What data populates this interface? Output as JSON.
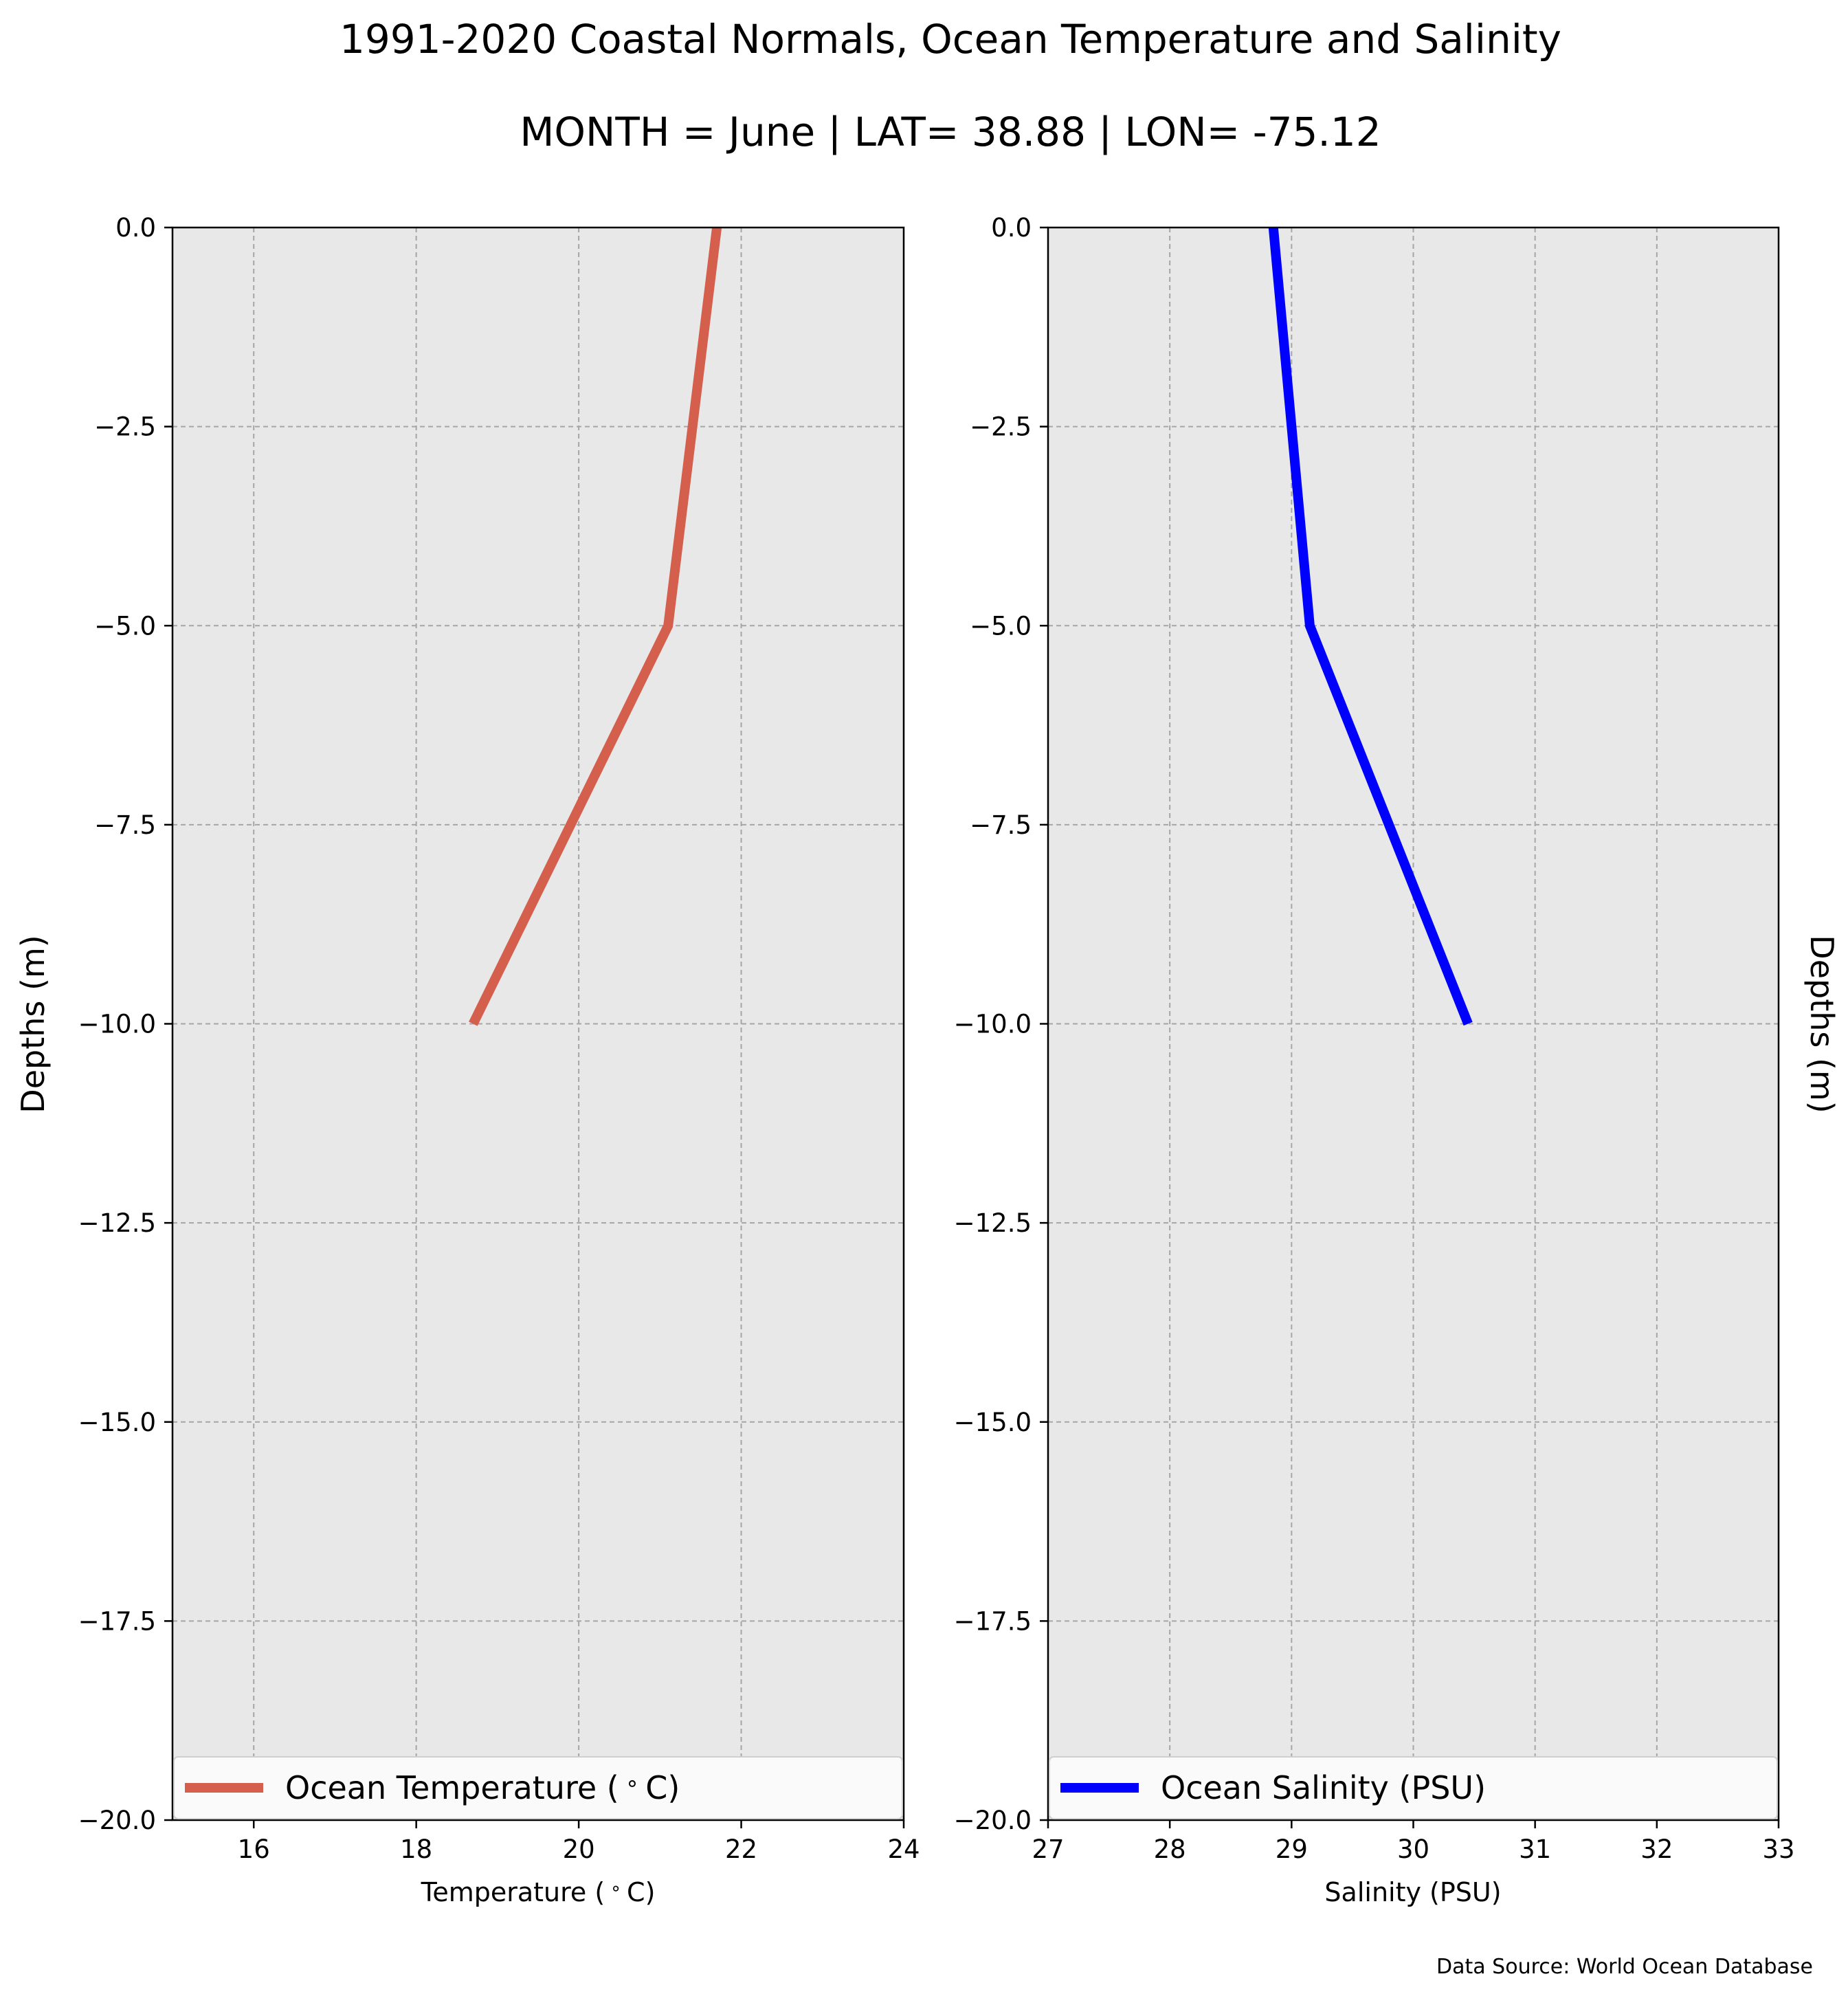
{
  "figure": {
    "title": "1991-2020 Coastal Normals, Ocean Temperature and Salinity",
    "subtitle": "MONTH = June | LAT= 38.88 | LON= -75.12",
    "source": "Data Source: World Ocean Database"
  },
  "chart_data": [
    {
      "type": "line",
      "title": "",
      "xlabel": "Temperature ($^\\circ$C)",
      "ylabel": "Depths (m)",
      "xlim": [
        15,
        24
      ],
      "ylim": [
        -20,
        0
      ],
      "xticks": [
        16,
        18,
        20,
        22,
        24
      ],
      "xtick_labels": [
        "16",
        "18",
        "20",
        "22",
        "24"
      ],
      "yticks": [
        0,
        -2.5,
        -5,
        -7.5,
        -10,
        -12.5,
        -15,
        -17.5,
        -20
      ],
      "ytick_labels": [
        "0.0",
        "−2.5",
        "−5.0",
        "−7.5",
        "−10.0",
        "−12.5",
        "−15.0",
        "−17.5",
        "−20.0"
      ],
      "grid": true,
      "legend_position": "bottom",
      "series": [
        {
          "name": "Ocean Temperature ($^\\circ$C)",
          "color": "#d45f4d",
          "x": [
            21.7,
            21.1,
            18.7
          ],
          "y": [
            0,
            -5,
            -10
          ]
        }
      ]
    },
    {
      "type": "line",
      "title": "",
      "xlabel": "Salinity (PSU)",
      "ylabel": "Depths (m)",
      "xlim": [
        27,
        33
      ],
      "ylim": [
        -20,
        0
      ],
      "xticks": [
        27,
        28,
        29,
        30,
        31,
        32,
        33
      ],
      "xtick_labels": [
        "27",
        "28",
        "29",
        "30",
        "31",
        "32",
        "33"
      ],
      "yticks": [
        0,
        -2.5,
        -5,
        -7.5,
        -10,
        -12.5,
        -15,
        -17.5,
        -20
      ],
      "ytick_labels": [
        "0.0",
        "−2.5",
        "−5.0",
        "−7.5",
        "−10.0",
        "−12.5",
        "−15.0",
        "−17.5",
        "−20.0"
      ],
      "grid": true,
      "legend_position": "bottom",
      "series": [
        {
          "name": "Ocean Salinity (PSU)",
          "color": "#0000ff",
          "x": [
            28.85,
            29.15,
            30.45
          ],
          "y": [
            0,
            -5,
            -10
          ]
        }
      ]
    }
  ]
}
